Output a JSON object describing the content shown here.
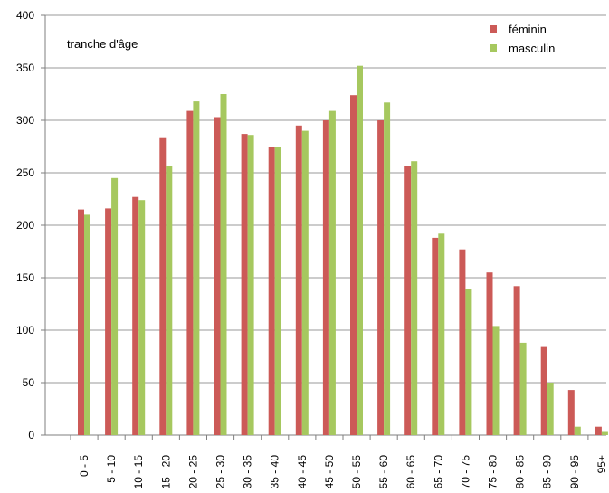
{
  "chart_data": {
    "type": "bar",
    "title": "",
    "annotation": "tranche d'âge",
    "xlabel": "",
    "ylabel": "",
    "ylim": [
      0,
      400
    ],
    "yticks": [
      0,
      50,
      100,
      150,
      200,
      250,
      300,
      350,
      400
    ],
    "grid": true,
    "legend_position": "top-right",
    "categories": [
      "0 - 5",
      "5 - 10",
      "10 - 15",
      "15 - 20",
      "20 - 25",
      "25 - 30",
      "30 - 35",
      "35 - 40",
      "40 - 45",
      "45 - 50",
      "50 - 55",
      "55 - 60",
      "60 - 65",
      "65 - 70",
      "70 - 75",
      "75 - 80",
      "80 - 85",
      "85 - 90",
      "90 - 95",
      "95+"
    ],
    "series": [
      {
        "name": "féminin",
        "color": "#cc5a57",
        "values": [
          215,
          216,
          227,
          283,
          309,
          303,
          287,
          275,
          295,
          300,
          324,
          300,
          256,
          188,
          177,
          155,
          142,
          84,
          43,
          8
        ]
      },
      {
        "name": "masculin",
        "color": "#a6c85f",
        "values": [
          210,
          245,
          224,
          256,
          318,
          325,
          286,
          275,
          290,
          309,
          352,
          317,
          261,
          192,
          139,
          104,
          88,
          50,
          8,
          3
        ]
      }
    ]
  }
}
